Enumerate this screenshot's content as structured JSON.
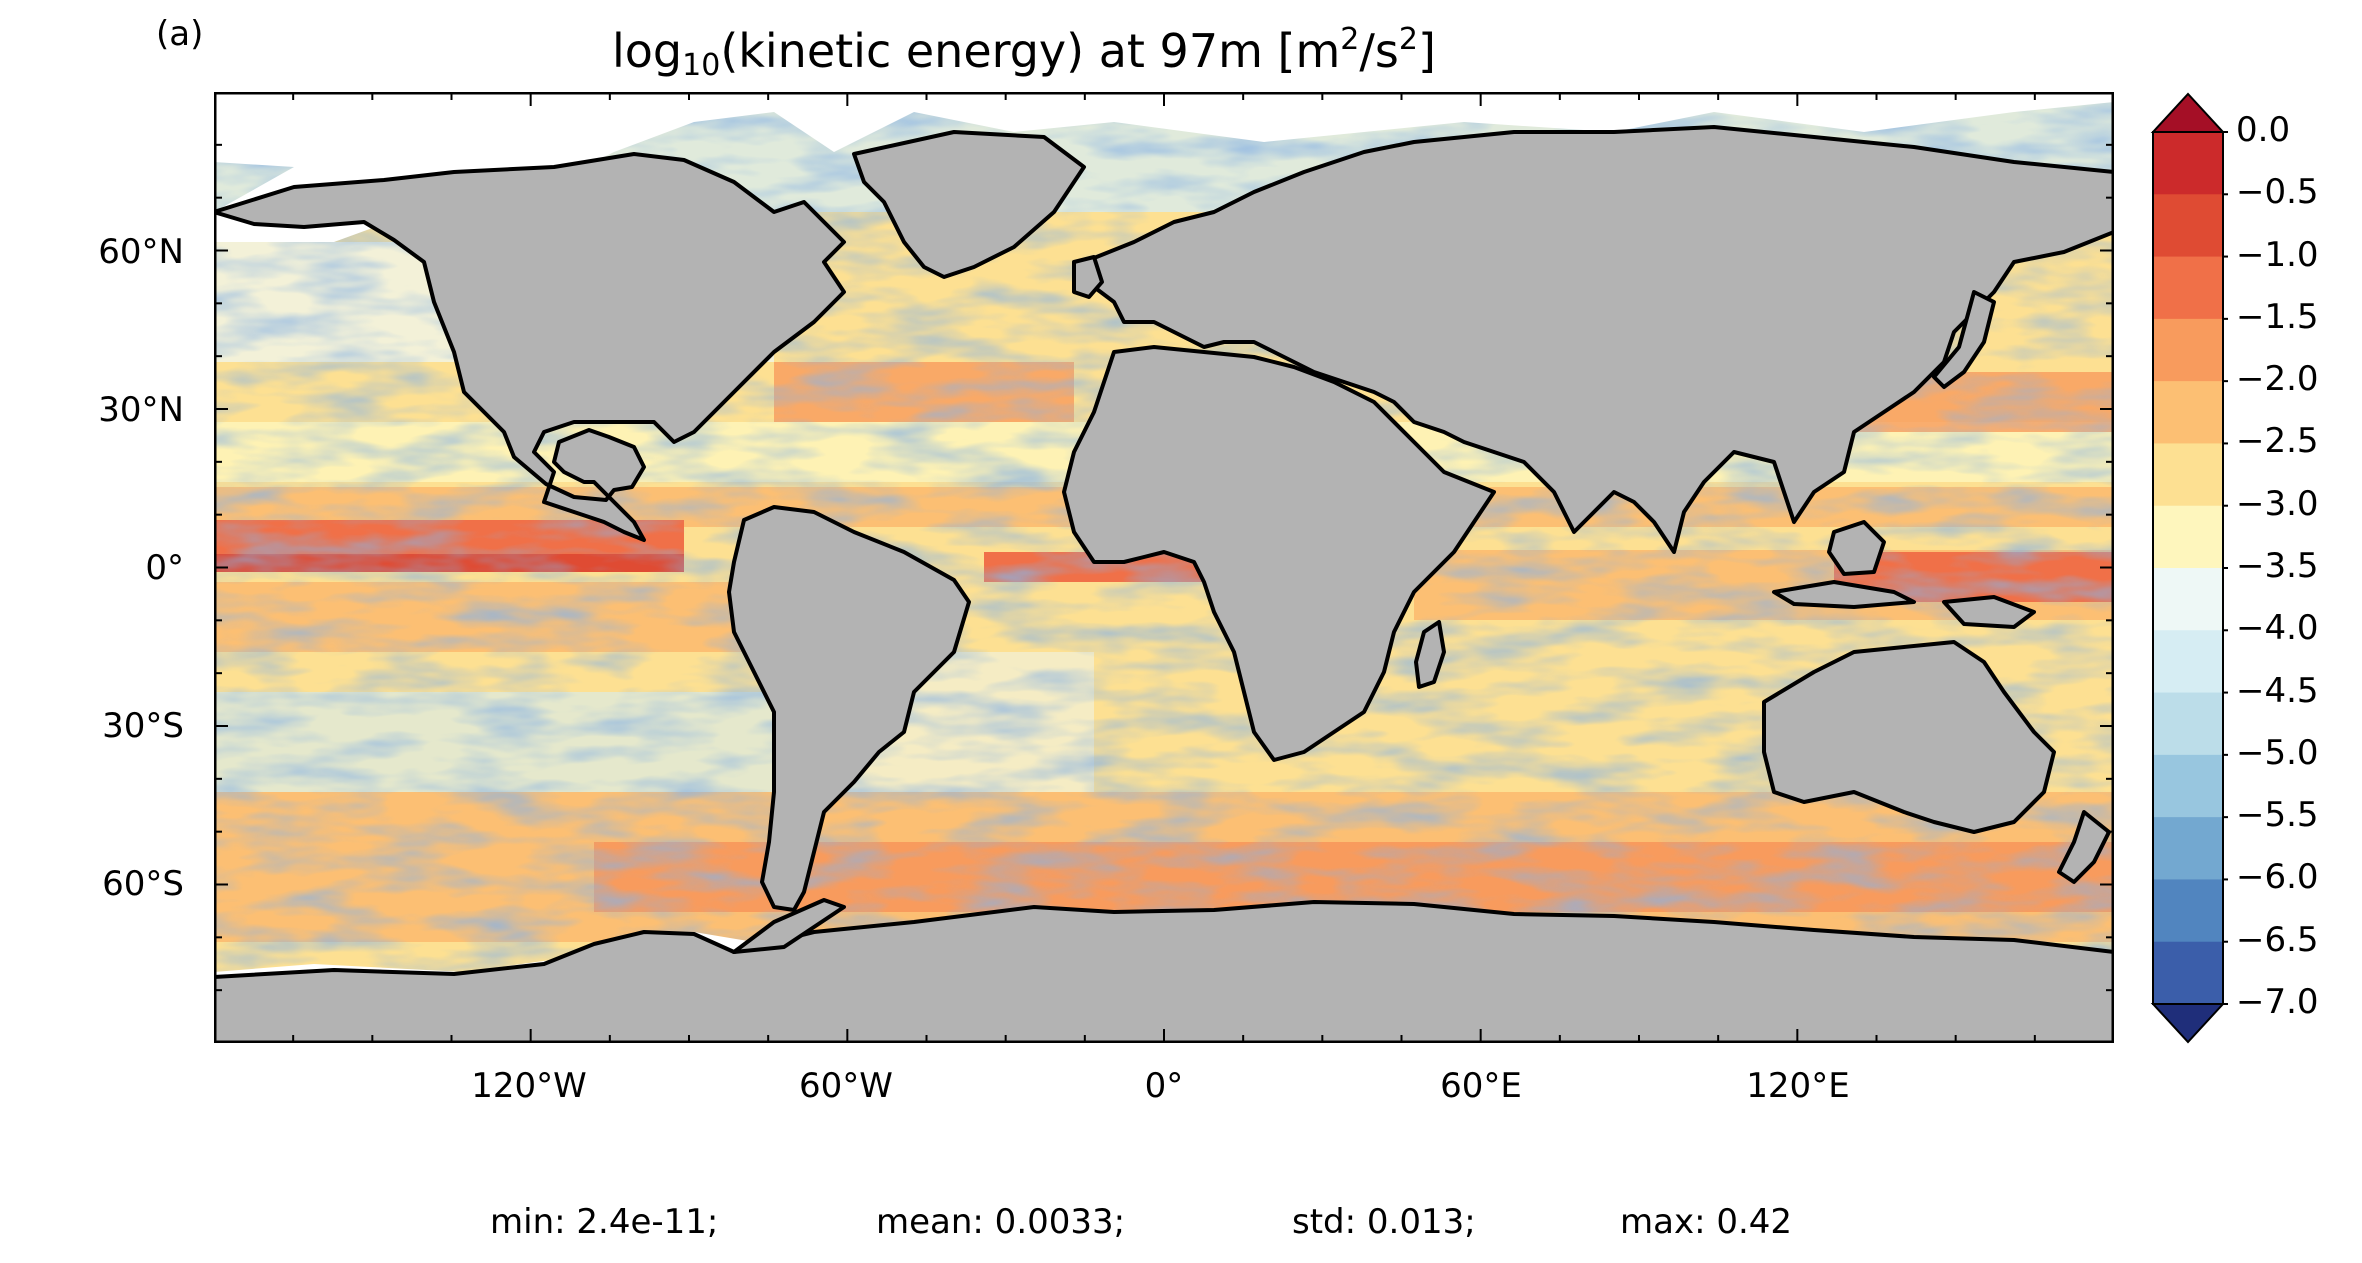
{
  "panel_label": "(a)",
  "title": {
    "prefix": "log",
    "sub": "10",
    "middle": "(kinetic energy) at 97m [m",
    "sup1": "2",
    "slash": "/s",
    "sup2": "2",
    "suffix": "]"
  },
  "y_ticks": [
    "60°N",
    "30°N",
    "0°",
    "30°S",
    "60°S"
  ],
  "x_ticks": [
    "120°W",
    "60°W",
    "0°",
    "60°E",
    "120°E"
  ],
  "colorbar": {
    "ticks": [
      "0.0",
      "−0.5",
      "−1.0",
      "−1.5",
      "−2.0",
      "−2.5",
      "−3.0",
      "−3.5",
      "−4.0",
      "−4.5",
      "−5.0",
      "−5.5",
      "−6.0",
      "−6.5",
      "−7.0"
    ],
    "colors_top_to_bottom": [
      "#b2182b",
      "#cc2a2b",
      "#df4b33",
      "#f07048",
      "#f89b5d",
      "#fcbf73",
      "#fde092",
      "#fef6bd",
      "#eef8f6",
      "#d6edf3",
      "#bcdde9",
      "#98c6df",
      "#73a8d0",
      "#5185bf",
      "#3b5eaa",
      "#2b3f94"
    ],
    "extend_top": "#a50f26",
    "extend_bottom": "#1f2e7a"
  },
  "stats": {
    "min": "min: 2.4e-11;",
    "mean": "mean: 0.0033;",
    "std": "std: 0.013;",
    "max": "max: 0.42"
  },
  "map": {
    "projection": "PlateCarree",
    "lon_range": [
      -180,
      180
    ],
    "lat_range": [
      -90,
      90
    ],
    "land_color": "#b3b3b3",
    "ocean_base_color": "#fde092",
    "sea_ice_color": "#ffffff",
    "coastline_color": "#000000"
  }
}
